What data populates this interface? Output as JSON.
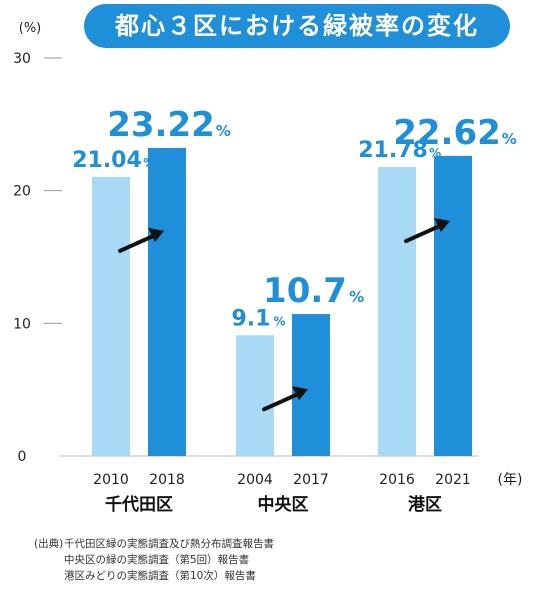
{
  "chart_data": {
    "type": "bar",
    "title": "都心３区における緑被率の変化",
    "ylabel": "(%)",
    "xunit": "(年)",
    "ylim": [
      0,
      30
    ],
    "yticks": [
      "0",
      "10",
      "20",
      "30"
    ],
    "groups": [
      {
        "name": "千代田区",
        "bars": [
          {
            "year": "2010",
            "value": 21.04,
            "label": "21.04",
            "color": "#a8daf5"
          },
          {
            "year": "2018",
            "value": 23.22,
            "label": "23.22",
            "color": "#1e8fd8"
          }
        ]
      },
      {
        "name": "中央区",
        "bars": [
          {
            "year": "2004",
            "value": 9.1,
            "label": "9.1",
            "color": "#a8daf5"
          },
          {
            "year": "2017",
            "value": 10.7,
            "label": "10.7",
            "color": "#1e8fd8"
          }
        ]
      },
      {
        "name": "港区",
        "bars": [
          {
            "year": "2016",
            "value": 21.78,
            "label": "21.78",
            "color": "#a8daf5"
          },
          {
            "year": "2021",
            "value": 22.62,
            "label": "22.62",
            "color": "#1e8fd8"
          }
        ]
      }
    ],
    "value_suffix": "%",
    "label_color": "#1e8fd8"
  },
  "source": {
    "label": "(出典)",
    "lines": [
      "千代田区緑の実態調査及び熱分布調査報告書",
      "中央区の緑の実態調査（第5回）報告書",
      "港区みどりの実態調査（第10次）報告書"
    ]
  }
}
